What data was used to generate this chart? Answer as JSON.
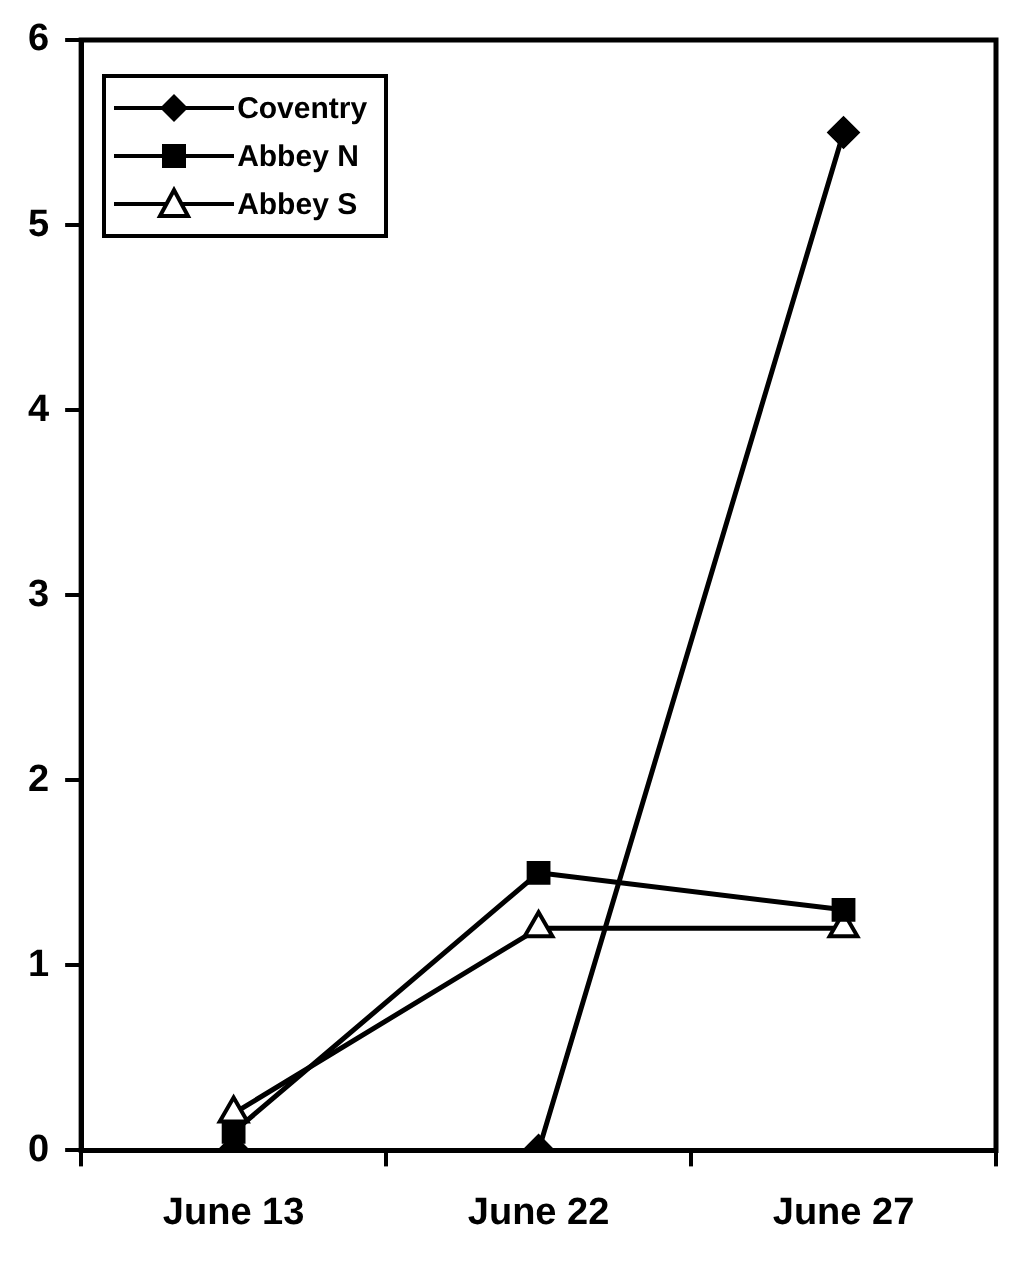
{
  "chart_data": {
    "type": "line",
    "categories": [
      "June 13",
      "June 22",
      "June 27"
    ],
    "series": [
      {
        "name": "Coventry",
        "color": "#000000",
        "marker": "diamond",
        "values": [
          0,
          0,
          5.5
        ]
      },
      {
        "name": "Abbey N",
        "color": "#000000",
        "marker": "square",
        "values": [
          0.1,
          1.5,
          1.3
        ]
      },
      {
        "name": "Abbey S",
        "color": "#000000",
        "marker": "triangle",
        "values": [
          0.2,
          1.2,
          1.2
        ]
      }
    ],
    "ylim": [
      0,
      6
    ],
    "yticks": [
      0,
      1,
      2,
      3,
      4,
      5,
      6
    ],
    "grid": false,
    "legend": "top left",
    "line_style": "solid"
  }
}
